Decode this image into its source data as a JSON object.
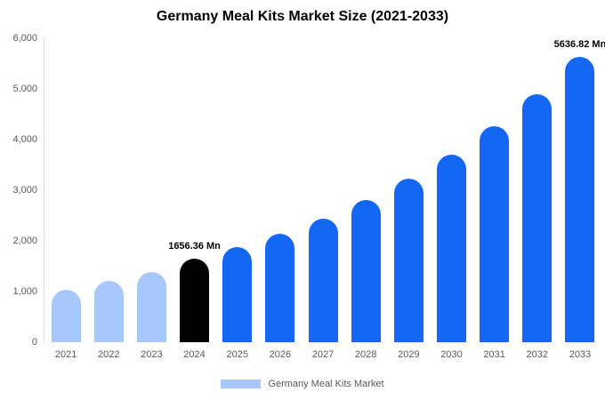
{
  "title": "Germany Meal Kits Market Size (2021-2033)",
  "chart_data": {
    "type": "bar",
    "title": "Germany Meal Kits Market Size (2021-2033)",
    "categories": [
      "2021",
      "2022",
      "2023",
      "2024",
      "2025",
      "2026",
      "2027",
      "2028",
      "2029",
      "2030",
      "2031",
      "2032",
      "2033"
    ],
    "values": [
      1030,
      1210,
      1390,
      1656.36,
      1870,
      2140,
      2440,
      2800,
      3230,
      3710,
      4260,
      4890,
      5636.82
    ],
    "unit": "Mn",
    "bar_colors": [
      "#a8c7fa",
      "#a8c7fa",
      "#a8c7fa",
      "#000000",
      "#1467f2",
      "#1467f2",
      "#1467f2",
      "#1467f2",
      "#1467f2",
      "#1467f2",
      "#1467f2",
      "#1467f2",
      "#1467f2"
    ],
    "annotations": {
      "2024": "1656.36 Mn",
      "2033": "5636.82 Mn"
    },
    "ylim": [
      0,
      6000
    ],
    "yticks": [
      {
        "label": "6,000",
        "value": 6000
      },
      {
        "label": "5,000",
        "value": 5000
      },
      {
        "label": "4,000",
        "value": 4000
      },
      {
        "label": "3,000",
        "value": 3000
      },
      {
        "label": "2,000",
        "value": 2000
      },
      {
        "label": "1,000",
        "value": 1000
      },
      {
        "label": "0",
        "value": 0
      }
    ],
    "grid": false,
    "legend_position": "bottom",
    "legend": [
      {
        "label": "Germany Meal Kits Market",
        "color": "#a8c7fa"
      }
    ]
  }
}
